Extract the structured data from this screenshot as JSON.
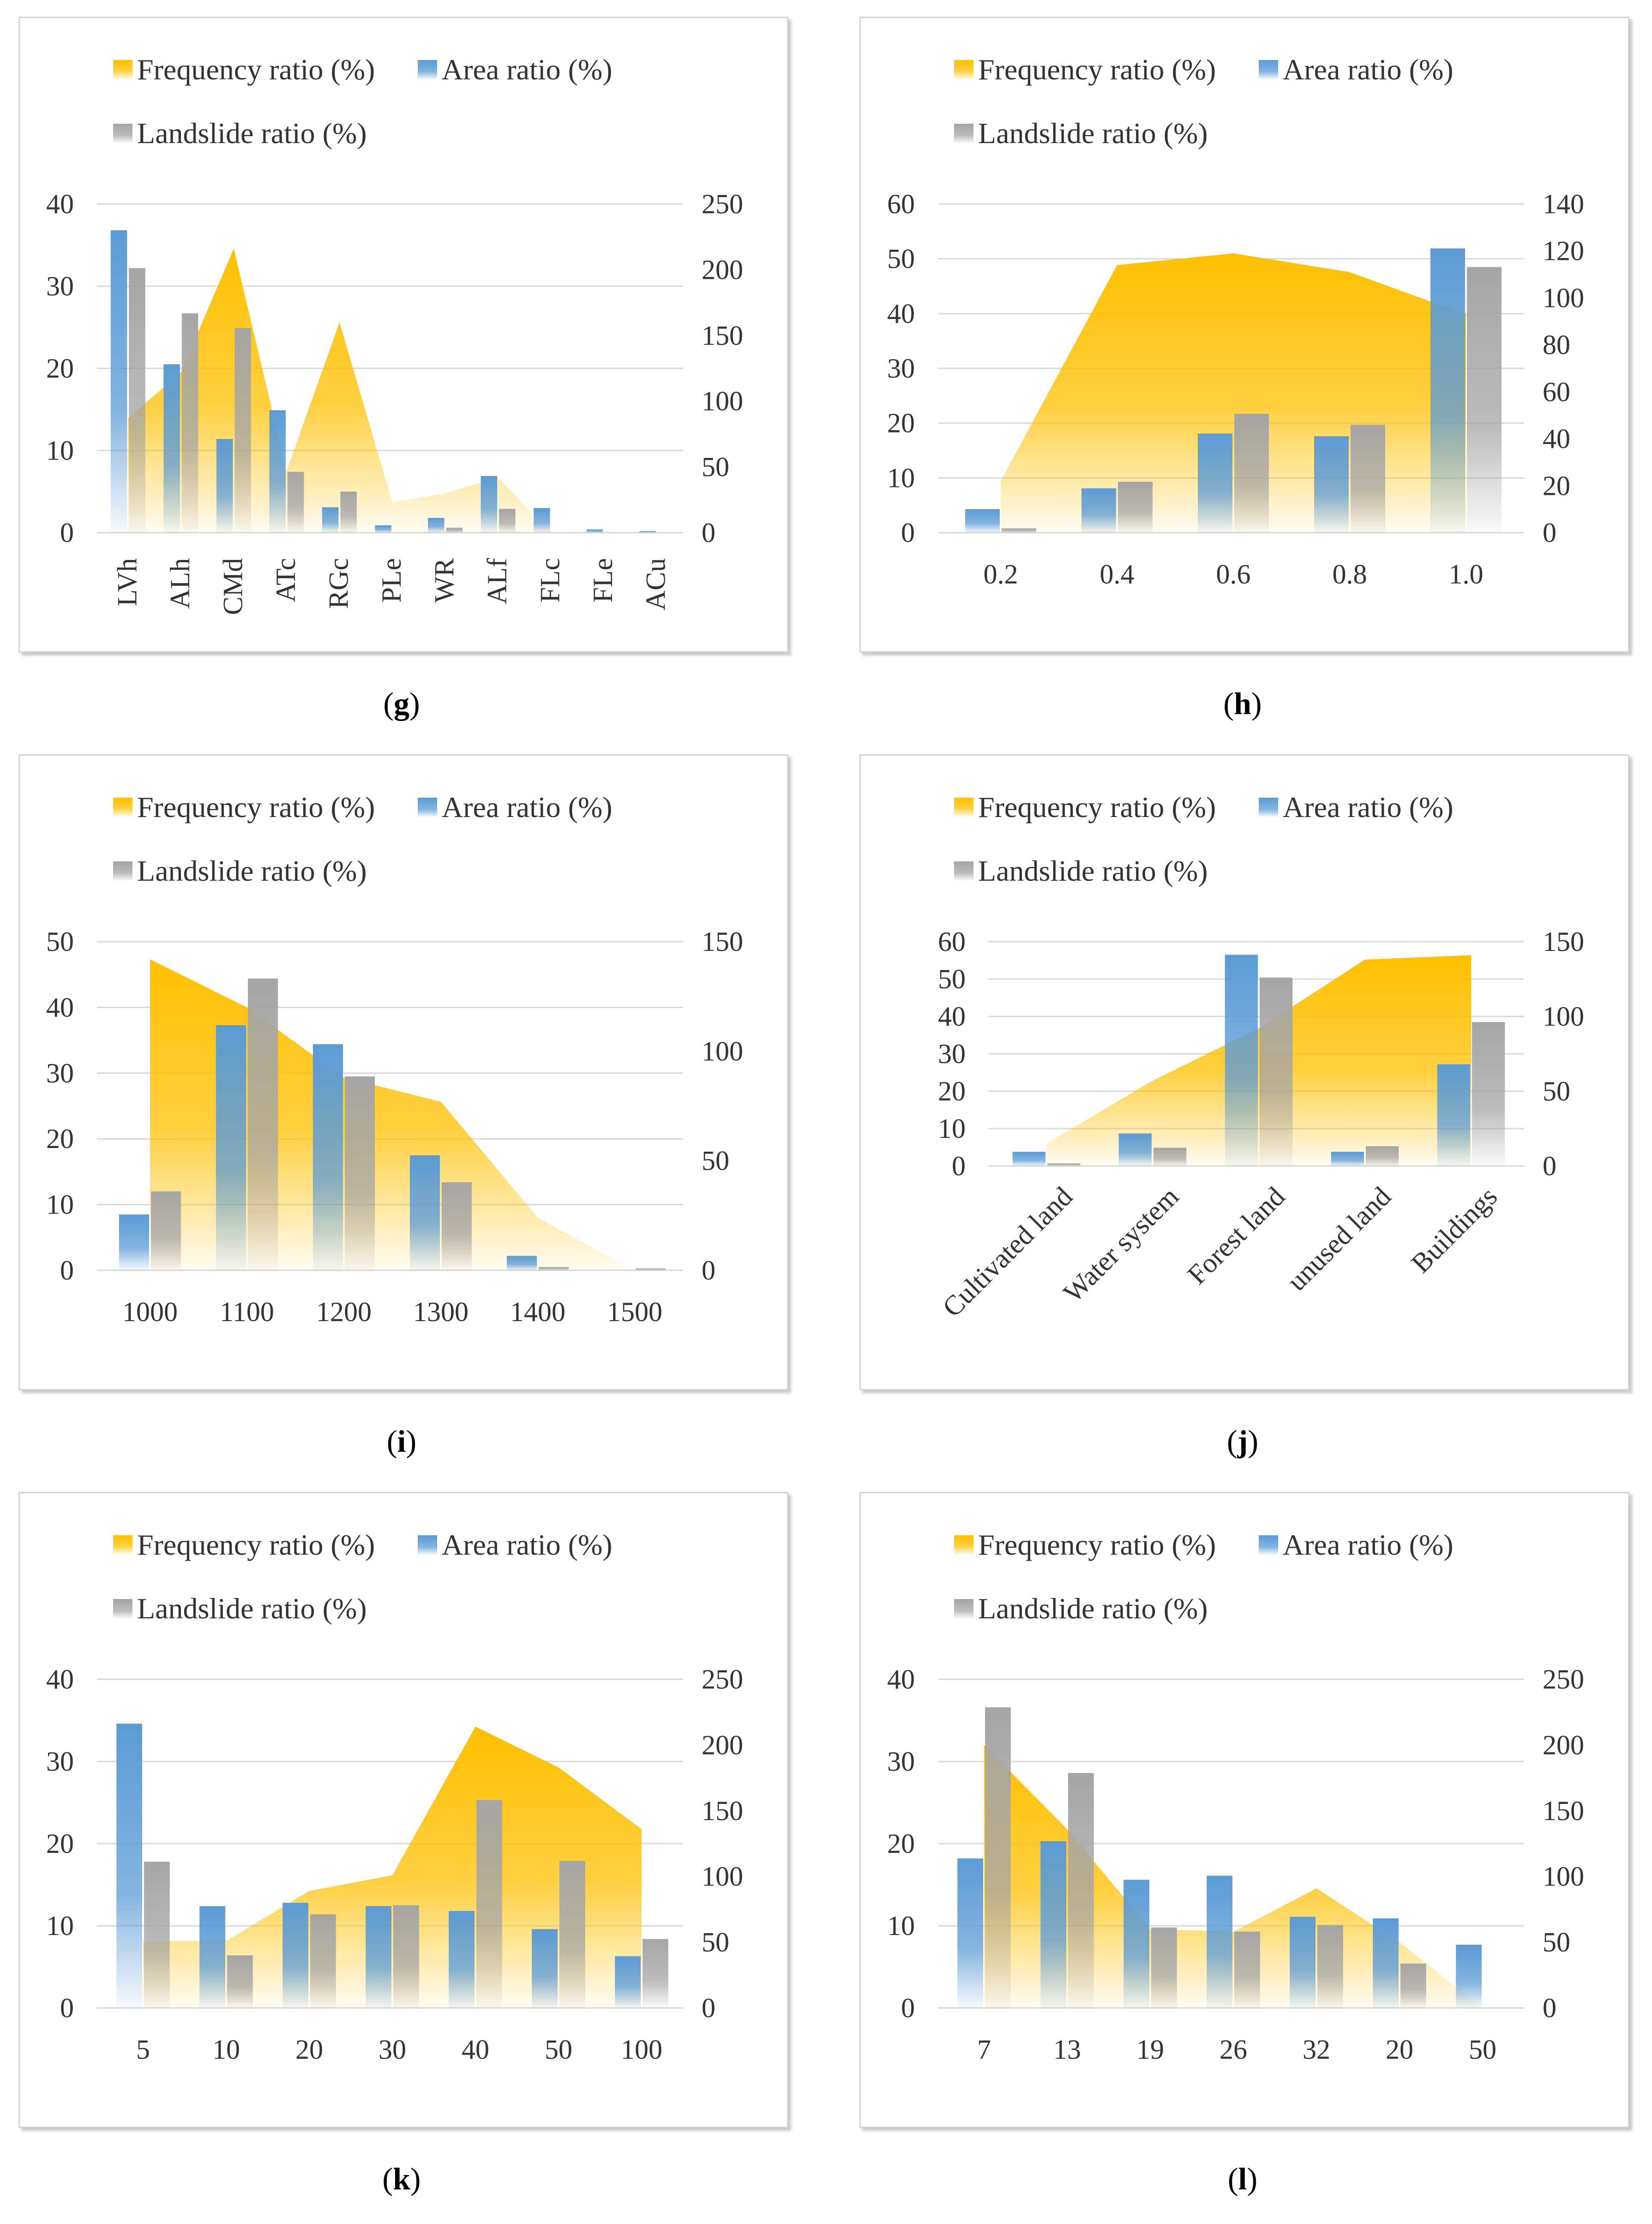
{
  "figure": {
    "panels": [
      {
        "id": "g",
        "caption": "g",
        "legend": [
          "Frequency ratio (%)",
          "Area ratio (%)",
          "Landslide ratio (%)"
        ],
        "chart_data": {
          "type": "bar",
          "title": "",
          "categories": [
            "LVh",
            "ALh",
            "CMd",
            "ATc",
            "RGc",
            "PLe",
            "WR",
            "ALf",
            "FLc",
            "FLe",
            "ACu"
          ],
          "rotate_labels": true,
          "y_left": {
            "ticks": [
              0,
              10,
              20,
              30,
              40
            ],
            "min": 0,
            "max": 40
          },
          "y_right": {
            "ticks": [
              0,
              50,
              100,
              150,
              200,
              250
            ],
            "min": 0,
            "max": 250
          },
          "series": [
            {
              "name": "Frequency ratio (%)",
              "type": "area",
              "axis": "right",
              "color": "#ffc000",
              "values": [
                87,
                122,
                216,
                47,
                160,
                23,
                30,
                42,
                0,
                0,
                0
              ]
            },
            {
              "name": "Area ratio (%)",
              "type": "bar",
              "axis": "left",
              "color": "#5b9bd5",
              "values": [
                36.8,
                20.5,
                11.4,
                14.9,
                3.1,
                0.9,
                1.8,
                6.9,
                3.0,
                0.4,
                0.2
              ]
            },
            {
              "name": "Landslide ratio (%)",
              "type": "bar",
              "axis": "left",
              "color": "#a5a5a5",
              "values": [
                32.2,
                26.7,
                24.9,
                7.4,
                5.0,
                0,
                0.6,
                2.9,
                0,
                0,
                0
              ]
            }
          ]
        }
      },
      {
        "id": "h",
        "caption": "h",
        "legend": [
          "Frequency ratio (%)",
          "Area ratio (%)",
          "Landslide ratio (%)"
        ],
        "chart_data": {
          "type": "bar",
          "title": "",
          "categories": [
            "0.2",
            "0.4",
            "0.6",
            "0.8",
            "1.0"
          ],
          "rotate_labels": false,
          "y_left": {
            "ticks": [
              0,
              10,
              20,
              30,
              40,
              50,
              60
            ],
            "min": 0,
            "max": 60
          },
          "y_right": {
            "ticks": [
              0,
              20,
              40,
              60,
              80,
              100,
              120,
              140
            ],
            "min": 0,
            "max": 140
          },
          "series": [
            {
              "name": "Frequency ratio (%)",
              "type": "area",
              "axis": "right",
              "color": "#ffc000",
              "values": [
                22,
                114,
                119,
                111,
                93
              ]
            },
            {
              "name": "Area ratio (%)",
              "type": "bar",
              "axis": "left",
              "color": "#5b9bd5",
              "values": [
                4.3,
                8.1,
                18.1,
                17.6,
                51.9
              ]
            },
            {
              "name": "Landslide ratio (%)",
              "type": "bar",
              "axis": "left",
              "color": "#a5a5a5",
              "values": [
                0.8,
                9.3,
                21.7,
                19.7,
                48.5
              ]
            }
          ]
        }
      },
      {
        "id": "i",
        "caption": "i",
        "legend": [
          "Frequency ratio (%)",
          "Area ratio (%)",
          "Landslide ratio (%)"
        ],
        "chart_data": {
          "type": "bar",
          "title": "",
          "categories": [
            "1000",
            "1100",
            "1200",
            "1300",
            "1400",
            "1500"
          ],
          "rotate_labels": false,
          "y_left": {
            "ticks": [
              0,
              10,
              20,
              30,
              40,
              50
            ],
            "min": 0,
            "max": 50
          },
          "y_right": {
            "ticks": [
              0,
              50,
              100,
              150
            ],
            "min": 0,
            "max": 150
          },
          "series": [
            {
              "name": "Frequency ratio (%)",
              "type": "area",
              "axis": "right",
              "color": "#ffc000",
              "values": [
                142,
                120,
                88,
                77,
                24,
                0
              ]
            },
            {
              "name": "Area ratio (%)",
              "type": "bar",
              "axis": "left",
              "color": "#5b9bd5",
              "values": [
                8.5,
                37.3,
                34.4,
                17.5,
                2.2,
                0
              ]
            },
            {
              "name": "Landslide ratio (%)",
              "type": "bar",
              "axis": "left",
              "color": "#a5a5a5",
              "values": [
                12.0,
                44.4,
                29.5,
                13.4,
                0.5,
                0.3
              ]
            }
          ]
        }
      },
      {
        "id": "j",
        "caption": "j",
        "legend": [
          "Frequency ratio (%)",
          "Area ratio (%)",
          "Landslide ratio (%)"
        ],
        "chart_data": {
          "type": "bar",
          "title": "",
          "categories": [
            "Cultivated land",
            "Water system",
            "Forest land",
            "unused land",
            "Buildings"
          ],
          "rotate_labels": true,
          "y_left": {
            "ticks": [
              0,
              10,
              20,
              30,
              40,
              50,
              60
            ],
            "min": 0,
            "max": 60
          },
          "y_right": {
            "ticks": [
              0,
              50,
              100,
              150
            ],
            "min": 0,
            "max": 150
          },
          "series": [
            {
              "name": "Frequency ratio (%)",
              "type": "area",
              "axis": "right",
              "color": "#ffc000",
              "values": [
                15,
                57,
                92,
                138,
                141
              ]
            },
            {
              "name": "Area ratio (%)",
              "type": "bar",
              "axis": "left",
              "color": "#5b9bd5",
              "values": [
                3.8,
                8.7,
                56.5,
                3.8,
                27.2
              ]
            },
            {
              "name": "Landslide ratio (%)",
              "type": "bar",
              "axis": "left",
              "color": "#a5a5a5",
              "values": [
                0.7,
                4.9,
                50.4,
                5.3,
                38.5
              ]
            }
          ]
        }
      },
      {
        "id": "k",
        "caption": "k",
        "legend": [
          "Frequency ratio (%)",
          "Area ratio (%)",
          "Landslide ratio (%)"
        ],
        "chart_data": {
          "type": "bar",
          "title": "",
          "categories": [
            "5",
            "10",
            "20",
            "30",
            "40",
            "50",
            "100"
          ],
          "rotate_labels": false,
          "y_left": {
            "ticks": [
              0,
              10,
              20,
              30,
              40
            ],
            "min": 0,
            "max": 40
          },
          "y_right": {
            "ticks": [
              0,
              50,
              100,
              150,
              200,
              250
            ],
            "min": 0,
            "max": 250
          },
          "series": [
            {
              "name": "Frequency ratio (%)",
              "type": "area",
              "axis": "right",
              "color": "#ffc000",
              "values": [
                51,
                51,
                89,
                101,
                214,
                183,
                136
              ]
            },
            {
              "name": "Area ratio (%)",
              "type": "bar",
              "axis": "left",
              "color": "#5b9bd5",
              "values": [
                34.6,
                12.4,
                12.8,
                12.4,
                11.8,
                9.6,
                6.3
              ]
            },
            {
              "name": "Landslide ratio (%)",
              "type": "bar",
              "axis": "left",
              "color": "#a5a5a5",
              "values": [
                17.8,
                6.4,
                11.4,
                12.5,
                25.3,
                17.9,
                8.4
              ]
            }
          ]
        }
      },
      {
        "id": "l",
        "caption": "l",
        "legend": [
          "Frequency ratio (%)",
          "Area ratio (%)",
          "Landslide ratio (%)"
        ],
        "chart_data": {
          "type": "bar",
          "title": "",
          "categories": [
            "7",
            "13",
            "19",
            "26",
            "32",
            "20",
            "50"
          ],
          "rotate_labels": false,
          "y_left": {
            "ticks": [
              0,
              10,
              20,
              30,
              40
            ],
            "min": 0,
            "max": 40
          },
          "y_right": {
            "ticks": [
              0,
              50,
              100,
              150,
              200,
              250
            ],
            "min": 0,
            "max": 250
          },
          "series": [
            {
              "name": "Frequency ratio (%)",
              "type": "area",
              "axis": "right",
              "color": "#ffc000",
              "values": [
                200,
                136,
                60,
                58,
                91,
                50,
                0
              ]
            },
            {
              "name": "Area ratio (%)",
              "type": "bar",
              "axis": "left",
              "color": "#5b9bd5",
              "values": [
                18.2,
                20.3,
                15.6,
                16.1,
                11.1,
                10.9,
                7.7
              ]
            },
            {
              "name": "Landslide ratio (%)",
              "type": "bar",
              "axis": "left",
              "color": "#a5a5a5",
              "values": [
                36.6,
                28.6,
                9.8,
                9.3,
                10.1,
                5.4,
                0
              ]
            }
          ]
        }
      }
    ]
  }
}
